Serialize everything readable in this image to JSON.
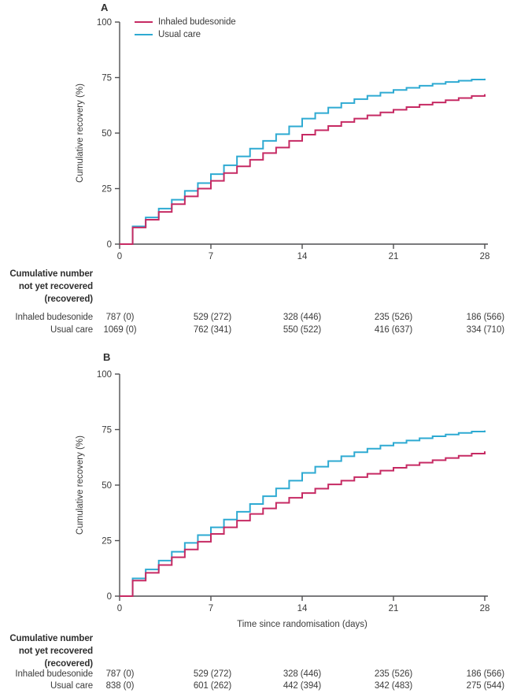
{
  "colors": {
    "budesonide": "#c62a63",
    "usual_care": "#2eaad2",
    "axis": "#4f4f51",
    "text": "#3c3c3c"
  },
  "chart_data": [
    {
      "type": "line",
      "style": "step-post",
      "panel_label": "A",
      "ylabel": "Cumulative recovery (%)",
      "xlabel": "",
      "xlim": [
        0,
        28
      ],
      "ylim": [
        0,
        100
      ],
      "xticks": [
        0,
        7,
        14,
        21,
        28
      ],
      "yticks": [
        0,
        25,
        50,
        75,
        100
      ],
      "grid": false,
      "legend_position": "top-left-inside",
      "x_days": [
        0,
        1,
        2,
        3,
        4,
        5,
        6,
        7,
        8,
        9,
        10,
        11,
        12,
        13,
        14,
        15,
        16,
        17,
        18,
        19,
        20,
        21,
        22,
        23,
        24,
        25,
        26,
        27,
        28
      ],
      "series": [
        {
          "name": "Inhaled budesonide",
          "color_key": "budesonide",
          "values": [
            0,
            7.5,
            11,
            14.5,
            18,
            21.5,
            25,
            28.5,
            32,
            35,
            38,
            41,
            43.5,
            46.5,
            49.3,
            51.3,
            53.2,
            55,
            56.5,
            58,
            59.3,
            60.5,
            61.7,
            62.8,
            63.8,
            64.8,
            65.8,
            66.7,
            67.5
          ]
        },
        {
          "name": "Usual care",
          "color_key": "usual_care",
          "values": [
            0,
            8,
            12,
            16,
            20,
            24,
            27.5,
            31.5,
            35.5,
            39.5,
            43,
            46.5,
            49.5,
            53,
            56.5,
            59,
            61.5,
            63.5,
            65.3,
            66.8,
            68.2,
            69.4,
            70.4,
            71.3,
            72.2,
            73,
            73.6,
            74.1,
            74.5
          ]
        }
      ],
      "risk_table": {
        "header_lines": [
          "Cumulative number",
          "not yet recovered",
          "(recovered)"
        ],
        "timepoints": [
          0,
          7,
          14,
          21,
          28
        ],
        "rows": [
          {
            "label": "Inhaled budesonide",
            "values": [
              "787 (0)",
              "529 (272)",
              "328 (446)",
              "235 (526)",
              "186 (566)"
            ]
          },
          {
            "label": "Usual care",
            "values": [
              "1069 (0)",
              "762 (341)",
              "550 (522)",
              "416 (637)",
              "334 (710)"
            ]
          }
        ]
      }
    },
    {
      "type": "line",
      "style": "step-post",
      "panel_label": "B",
      "ylabel": "Cumulative recovery (%)",
      "xlabel": "Time since randomisation (days)",
      "xlim": [
        0,
        28
      ],
      "ylim": [
        0,
        100
      ],
      "xticks": [
        0,
        7,
        14,
        21,
        28
      ],
      "yticks": [
        0,
        25,
        50,
        75,
        100
      ],
      "grid": false,
      "legend_position": "none",
      "x_days": [
        0,
        1,
        2,
        3,
        4,
        5,
        6,
        7,
        8,
        9,
        10,
        11,
        12,
        13,
        14,
        15,
        16,
        17,
        18,
        19,
        20,
        21,
        22,
        23,
        24,
        25,
        26,
        27,
        28
      ],
      "series": [
        {
          "name": "Inhaled budesonide",
          "color_key": "budesonide",
          "values": [
            0,
            7,
            10.5,
            14,
            17.5,
            21,
            24.5,
            28,
            31,
            34,
            37,
            39.5,
            42,
            44.3,
            46.4,
            48.4,
            50.3,
            52,
            53.6,
            55.1,
            56.5,
            57.8,
            59,
            60.1,
            61.2,
            62.2,
            63.2,
            64.2,
            65.2
          ]
        },
        {
          "name": "Usual care",
          "color_key": "usual_care",
          "values": [
            0,
            8,
            12,
            16,
            20,
            24,
            27.5,
            31,
            34.5,
            38,
            41.5,
            45,
            48.5,
            52,
            55.5,
            58.3,
            60.8,
            63,
            64.8,
            66.4,
            67.8,
            69,
            70.1,
            71.1,
            72,
            72.8,
            73.5,
            74.1,
            74.6
          ]
        }
      ],
      "risk_table": {
        "header_lines": [
          "Cumulative number",
          "not yet recovered",
          "(recovered)"
        ],
        "timepoints": [
          0,
          7,
          14,
          21,
          28
        ],
        "rows": [
          {
            "label": "Inhaled budesonide",
            "values": [
              "787 (0)",
              "529 (272)",
              "328 (446)",
              "235 (526)",
              "186 (566)"
            ]
          },
          {
            "label": "Usual care",
            "values": [
              "838 (0)",
              "601 (262)",
              "442 (394)",
              "342 (483)",
              "275 (544)"
            ]
          }
        ]
      }
    }
  ]
}
